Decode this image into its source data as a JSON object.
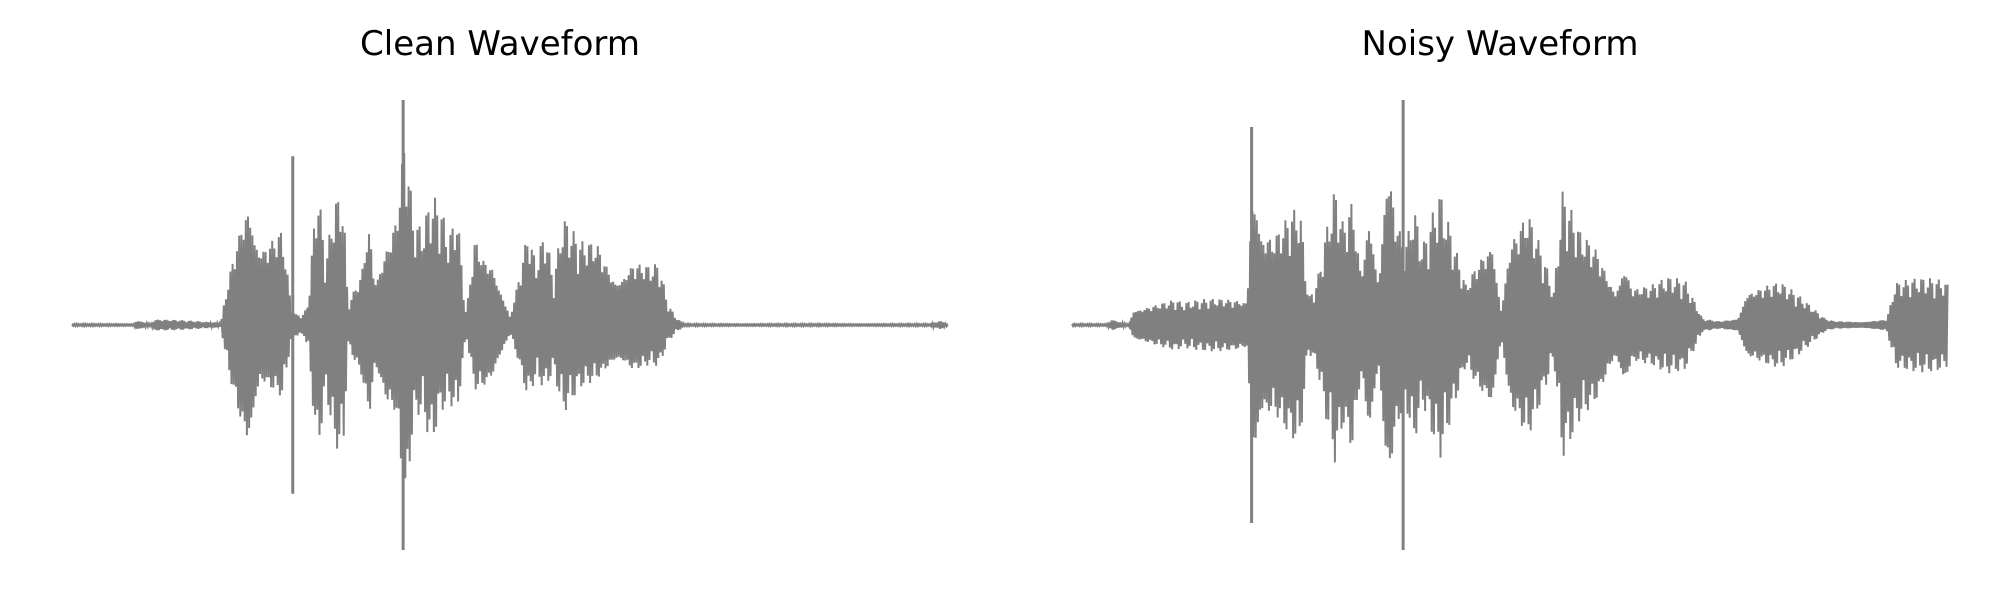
{
  "chart_data": [
    {
      "type": "line",
      "title": "Clean Waveform",
      "xlabel": "",
      "ylabel": "",
      "axes_visible": false,
      "grid": false,
      "color": "#808080",
      "ylim": [
        -1,
        1
      ],
      "envelope": {
        "x": [
          0.0,
          0.07,
          0.074,
          0.09,
          0.094,
          0.17,
          0.175,
          0.2,
          0.205,
          0.21,
          0.215,
          0.24,
          0.25,
          0.255,
          0.265,
          0.27,
          0.28,
          0.29,
          0.3,
          0.31,
          0.315,
          0.33,
          0.34,
          0.345,
          0.36,
          0.37,
          0.38,
          0.39,
          0.4,
          0.41,
          0.42,
          0.43,
          0.44,
          0.45,
          0.46,
          0.47,
          0.48,
          0.5,
          0.52,
          0.53,
          0.54,
          0.55,
          0.56,
          0.58,
          0.6,
          0.62,
          0.64,
          0.66,
          0.67,
          0.68,
          0.69,
          0.7,
          0.8,
          0.87,
          0.98,
          0.99,
          1.0
        ],
        "upper": [
          0.005,
          0.005,
          0.03,
          0.005,
          0.03,
          0.01,
          0.15,
          0.78,
          0.74,
          0.6,
          0.5,
          0.5,
          0.1,
          0.05,
          0.05,
          0.12,
          0.65,
          0.3,
          0.6,
          0.62,
          0.1,
          0.3,
          0.68,
          0.3,
          0.5,
          0.6,
          1.0,
          0.5,
          0.45,
          0.58,
          0.55,
          0.4,
          0.54,
          0.05,
          0.48,
          0.4,
          0.4,
          0.05,
          0.48,
          0.3,
          0.45,
          0.2,
          0.49,
          0.4,
          0.45,
          0.3,
          0.38,
          0.3,
          0.3,
          0.1,
          0.03,
          0.005,
          0.005,
          0.005,
          0.005,
          0.02,
          0.005
        ],
        "lower": [
          -0.005,
          -0.005,
          -0.03,
          -0.005,
          -0.03,
          -0.01,
          -0.15,
          -0.78,
          -0.74,
          -0.55,
          -0.38,
          -0.38,
          -0.08,
          -0.05,
          -0.05,
          -0.12,
          -0.6,
          -0.3,
          -0.58,
          -0.62,
          -0.1,
          -0.3,
          -0.62,
          -0.3,
          -0.5,
          -0.5,
          -1.0,
          -0.45,
          -0.4,
          -0.55,
          -0.4,
          -0.35,
          -0.42,
          -0.05,
          -0.36,
          -0.38,
          -0.36,
          -0.05,
          -0.38,
          -0.25,
          -0.3,
          -0.2,
          -0.4,
          -0.3,
          -0.3,
          -0.25,
          -0.28,
          -0.2,
          -0.2,
          -0.08,
          -0.03,
          -0.005,
          -0.005,
          -0.005,
          -0.005,
          -0.02,
          -0.005
        ]
      },
      "spikes": [
        {
          "x": 0.252,
          "y": [
            -0.75,
            0.75
          ]
        },
        {
          "x": 0.378,
          "y": [
            -1.0,
            1.0
          ]
        }
      ]
    },
    {
      "type": "line",
      "title": "Noisy Waveform",
      "xlabel": "",
      "ylabel": "",
      "axes_visible": false,
      "grid": false,
      "color": "#808080",
      "ylim": [
        -1,
        1
      ],
      "envelope": {
        "x": [
          0.0,
          0.04,
          0.045,
          0.065,
          0.07,
          0.12,
          0.125,
          0.2,
          0.205,
          0.21,
          0.215,
          0.23,
          0.25,
          0.26,
          0.27,
          0.28,
          0.3,
          0.31,
          0.32,
          0.33,
          0.34,
          0.35,
          0.36,
          0.37,
          0.38,
          0.39,
          0.4,
          0.42,
          0.45,
          0.48,
          0.49,
          0.5,
          0.52,
          0.55,
          0.56,
          0.58,
          0.6,
          0.62,
          0.63,
          0.64,
          0.66,
          0.68,
          0.7,
          0.72,
          0.74,
          0.75,
          0.76,
          0.77,
          0.78,
          0.8,
          0.81,
          0.86,
          0.87,
          0.9,
          0.93,
          0.94,
          0.99,
          1.0
        ],
        "upper": [
          0.005,
          0.005,
          0.03,
          0.005,
          0.1,
          0.12,
          0.1,
          0.15,
          0.88,
          0.9,
          0.6,
          0.5,
          0.55,
          0.55,
          0.12,
          0.2,
          0.65,
          0.5,
          0.68,
          0.3,
          0.72,
          0.3,
          1.0,
          0.6,
          0.4,
          0.58,
          0.36,
          0.6,
          0.2,
          0.54,
          0.1,
          0.5,
          0.58,
          0.15,
          0.6,
          0.45,
          0.41,
          0.22,
          0.4,
          0.22,
          0.2,
          0.22,
          0.2,
          0.03,
          0.02,
          0.03,
          0.04,
          0.21,
          0.21,
          0.21,
          0.2,
          0.03,
          0.02,
          0.02,
          0.03,
          0.21,
          0.21,
          0.2
        ],
        "lower": [
          -0.005,
          -0.005,
          -0.03,
          -0.005,
          -0.1,
          -0.12,
          -0.1,
          -0.15,
          -0.88,
          -0.9,
          -0.6,
          -0.5,
          -0.55,
          -0.55,
          -0.12,
          -0.2,
          -0.65,
          -0.5,
          -0.68,
          -0.3,
          -0.72,
          -0.3,
          -1.0,
          -0.6,
          -0.4,
          -0.58,
          -0.36,
          -0.6,
          -0.2,
          -0.54,
          -0.1,
          -0.5,
          -0.58,
          -0.15,
          -0.6,
          -0.45,
          -0.41,
          -0.22,
          -0.4,
          -0.22,
          -0.2,
          -0.22,
          -0.2,
          -0.03,
          -0.02,
          -0.03,
          -0.04,
          -0.21,
          -0.21,
          -0.21,
          -0.2,
          -0.03,
          -0.02,
          -0.02,
          -0.03,
          -0.21,
          -0.21,
          -0.2
        ]
      },
      "spikes": [
        {
          "x": 0.205,
          "y": [
            -0.88,
            0.88
          ]
        },
        {
          "x": 0.378,
          "y": [
            -1.0,
            1.0
          ]
        }
      ]
    }
  ]
}
